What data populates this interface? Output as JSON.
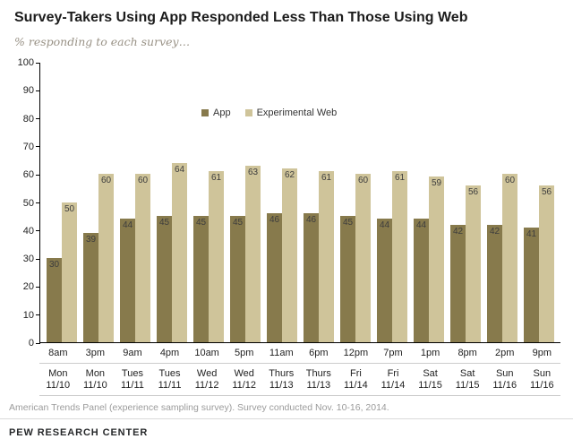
{
  "header": {
    "title": "Survey-Takers Using App Responded Less Than Those Using Web",
    "subtitle": "% responding to each survey…"
  },
  "legend": {
    "app_label": "App",
    "web_label": "Experimental Web"
  },
  "colors": {
    "app": "#877a4c",
    "web": "#cfc49a",
    "axis": "#000000",
    "bar_value_text": "#3d3d3d",
    "separator": "#cccccc"
  },
  "footer": {
    "note": "American Trends Panel (experience sampling survey). Survey conducted Nov. 10-16, 2014.",
    "source": "PEW RESEARCH CENTER"
  },
  "chart_data": {
    "type": "bar",
    "title": "Survey-Takers Using App Responded Less Than Those Using Web",
    "subtitle": "% responding to each survey…",
    "ylabel": "% responding",
    "ylim": [
      0,
      100
    ],
    "ytick_step": 10,
    "grid": false,
    "legend_position": "inside-top-center",
    "categories": [
      {
        "time": "8am",
        "day": "Mon",
        "date": "11/10"
      },
      {
        "time": "3pm",
        "day": "Mon",
        "date": "11/10"
      },
      {
        "time": "9am",
        "day": "Tues",
        "date": "11/11"
      },
      {
        "time": "4pm",
        "day": "Tues",
        "date": "11/11"
      },
      {
        "time": "10am",
        "day": "Wed",
        "date": "11/12"
      },
      {
        "time": "5pm",
        "day": "Wed",
        "date": "11/12"
      },
      {
        "time": "11am",
        "day": "Thurs",
        "date": "11/13"
      },
      {
        "time": "6pm",
        "day": "Thurs",
        "date": "11/13"
      },
      {
        "time": "12pm",
        "day": "Fri",
        "date": "11/14"
      },
      {
        "time": "7pm",
        "day": "Fri",
        "date": "11/14"
      },
      {
        "time": "1pm",
        "day": "Sat",
        "date": "11/15"
      },
      {
        "time": "8pm",
        "day": "Sat",
        "date": "11/15"
      },
      {
        "time": "2pm",
        "day": "Sun",
        "date": "11/16"
      },
      {
        "time": "9pm",
        "day": "Sun",
        "date": "11/16"
      }
    ],
    "series": [
      {
        "name": "App",
        "values": [
          30,
          39,
          44,
          45,
          45,
          45,
          46,
          46,
          45,
          44,
          44,
          42,
          42,
          41
        ]
      },
      {
        "name": "Experimental Web",
        "values": [
          50,
          60,
          60,
          64,
          61,
          63,
          62,
          61,
          60,
          61,
          59,
          56,
          60,
          56
        ]
      }
    ]
  }
}
